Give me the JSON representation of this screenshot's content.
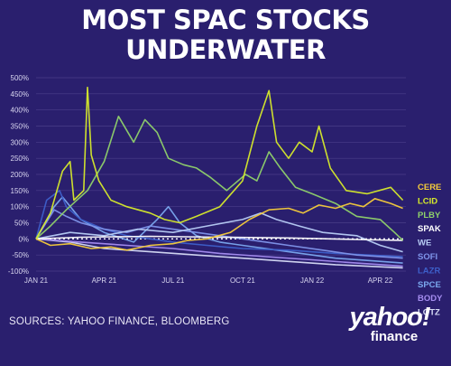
{
  "header": {
    "title_line1": "MOST SPAC STOCKS",
    "title_line2": "UNDERWATER"
  },
  "footer": {
    "sources": "SOURCES: YAHOO FINANCE, BLOOMBERG",
    "logo_line1": "yahoo!",
    "logo_line2": "finance"
  },
  "colors": {
    "background": "#2a1f6e",
    "grid": "#4a3f8a",
    "zero_line": "#ffffff"
  },
  "chart_data": {
    "type": "line",
    "title": "MOST SPAC STOCKS UNDERWATER",
    "ylim": [
      -100,
      500
    ],
    "y_ticks": [
      500,
      450,
      400,
      350,
      300,
      250,
      200,
      150,
      100,
      50,
      0,
      -50,
      -100
    ],
    "y_tick_labels": [
      "500%",
      "450%",
      "400%",
      "350%",
      "300%",
      "250%",
      "200%",
      "150%",
      "100%",
      "50%",
      "0%",
      "-50%",
      "-100%"
    ],
    "x_range": [
      "2021-01-01",
      "2022-05-05"
    ],
    "x_ticks": [
      "2021-01-01",
      "2021-04-01",
      "2021-07-01",
      "2021-10-01",
      "2022-01-01",
      "2022-04-01"
    ],
    "x_tick_labels": [
      "JAN 21",
      "APR 21",
      "JUL 21",
      "OCT 21",
      "JAN 22",
      "APR 22"
    ],
    "grid": "horizontal",
    "legend": "right",
    "series": [
      {
        "name": "CERE",
        "color": "#f5cc3a",
        "points": [
          [
            "2021-01-01",
            0
          ],
          [
            "2021-01-20",
            -20
          ],
          [
            "2021-02-15",
            -15
          ],
          [
            "2021-03-15",
            -30
          ],
          [
            "2021-04-10",
            -25
          ],
          [
            "2021-05-01",
            -35
          ],
          [
            "2021-06-01",
            -20
          ],
          [
            "2021-07-01",
            -15
          ],
          [
            "2021-07-20",
            -5
          ],
          [
            "2021-08-15",
            0
          ],
          [
            "2021-09-15",
            20
          ],
          [
            "2021-10-10",
            60
          ],
          [
            "2021-11-05",
            90
          ],
          [
            "2021-12-01",
            95
          ],
          [
            "2021-12-20",
            80
          ],
          [
            "2022-01-10",
            105
          ],
          [
            "2022-02-01",
            95
          ],
          [
            "2022-02-20",
            110
          ],
          [
            "2022-03-10",
            100
          ],
          [
            "2022-03-25",
            125
          ],
          [
            "2022-04-15",
            110
          ],
          [
            "2022-05-01",
            95
          ]
        ]
      },
      {
        "name": "LCID",
        "color": "#d6ea2a",
        "points": [
          [
            "2021-01-01",
            0
          ],
          [
            "2021-01-20",
            80
          ],
          [
            "2021-02-05",
            210
          ],
          [
            "2021-02-15",
            240
          ],
          [
            "2021-02-20",
            120
          ],
          [
            "2021-03-05",
            150
          ],
          [
            "2021-03-10",
            470
          ],
          [
            "2021-03-15",
            260
          ],
          [
            "2021-03-25",
            180
          ],
          [
            "2021-04-10",
            120
          ],
          [
            "2021-05-01",
            100
          ],
          [
            "2021-06-01",
            80
          ],
          [
            "2021-06-20",
            60
          ],
          [
            "2021-07-10",
            50
          ],
          [
            "2021-08-01",
            70
          ],
          [
            "2021-09-01",
            100
          ],
          [
            "2021-10-01",
            180
          ],
          [
            "2021-10-20",
            350
          ],
          [
            "2021-11-05",
            460
          ],
          [
            "2021-11-15",
            300
          ],
          [
            "2021-12-01",
            250
          ],
          [
            "2021-12-15",
            300
          ],
          [
            "2022-01-01",
            270
          ],
          [
            "2022-01-10",
            350
          ],
          [
            "2022-01-25",
            220
          ],
          [
            "2022-02-15",
            150
          ],
          [
            "2022-03-15",
            140
          ],
          [
            "2022-04-15",
            160
          ],
          [
            "2022-05-01",
            120
          ]
        ]
      },
      {
        "name": "PLBY",
        "color": "#8fd16a",
        "points": [
          [
            "2021-01-01",
            0
          ],
          [
            "2021-01-20",
            40
          ],
          [
            "2021-02-10",
            90
          ],
          [
            "2021-03-10",
            150
          ],
          [
            "2021-04-01",
            240
          ],
          [
            "2021-04-20",
            380
          ],
          [
            "2021-05-10",
            300
          ],
          [
            "2021-05-25",
            370
          ],
          [
            "2021-06-10",
            330
          ],
          [
            "2021-06-25",
            250
          ],
          [
            "2021-07-15",
            230
          ],
          [
            "2021-08-01",
            220
          ],
          [
            "2021-08-20",
            190
          ],
          [
            "2021-09-10",
            150
          ],
          [
            "2021-10-05",
            200
          ],
          [
            "2021-10-20",
            180
          ],
          [
            "2021-11-05",
            270
          ],
          [
            "2021-11-20",
            220
          ],
          [
            "2021-12-10",
            160
          ],
          [
            "2022-01-01",
            140
          ],
          [
            "2022-02-01",
            110
          ],
          [
            "2022-03-01",
            70
          ],
          [
            "2022-04-01",
            60
          ],
          [
            "2022-04-20",
            20
          ],
          [
            "2022-05-01",
            -5
          ]
        ]
      },
      {
        "name": "SPAK",
        "color": "#ffffff",
        "points": [
          [
            "2021-01-01",
            0
          ],
          [
            "2021-03-01",
            5
          ],
          [
            "2021-06-01",
            8
          ],
          [
            "2021-09-01",
            5
          ],
          [
            "2021-12-01",
            3
          ],
          [
            "2022-03-01",
            -2
          ],
          [
            "2022-05-01",
            -5
          ]
        ]
      },
      {
        "name": "WE",
        "color": "#b8cdf5",
        "points": [
          [
            "2021-01-01",
            0
          ],
          [
            "2021-02-15",
            20
          ],
          [
            "2021-04-01",
            10
          ],
          [
            "2021-05-15",
            30
          ],
          [
            "2021-07-01",
            20
          ],
          [
            "2021-08-15",
            40
          ],
          [
            "2021-10-01",
            60
          ],
          [
            "2021-10-25",
            80
          ],
          [
            "2021-11-15",
            60
          ],
          [
            "2021-12-15",
            40
          ],
          [
            "2022-01-15",
            20
          ],
          [
            "2022-03-01",
            10
          ],
          [
            "2022-04-01",
            -20
          ],
          [
            "2022-05-01",
            -40
          ]
        ]
      },
      {
        "name": "SOFI",
        "color": "#7f95ea",
        "points": [
          [
            "2021-01-01",
            0
          ],
          [
            "2021-01-25",
            90
          ],
          [
            "2021-02-10",
            70
          ],
          [
            "2021-03-01",
            50
          ],
          [
            "2021-04-01",
            30
          ],
          [
            "2021-05-01",
            20
          ],
          [
            "2021-06-01",
            40
          ],
          [
            "2021-07-01",
            30
          ],
          [
            "2021-08-01",
            20
          ],
          [
            "2021-09-01",
            10
          ],
          [
            "2021-10-01",
            0
          ],
          [
            "2021-11-01",
            -10
          ],
          [
            "2021-12-01",
            -20
          ],
          [
            "2022-01-15",
            -35
          ],
          [
            "2022-03-01",
            -50
          ],
          [
            "2022-05-01",
            -60
          ]
        ]
      },
      {
        "name": "LAZR",
        "color": "#3d5fc9",
        "points": [
          [
            "2021-01-01",
            0
          ],
          [
            "2021-01-15",
            120
          ],
          [
            "2021-02-01",
            150
          ],
          [
            "2021-02-10",
            100
          ],
          [
            "2021-03-01",
            60
          ],
          [
            "2021-04-01",
            30
          ],
          [
            "2021-05-01",
            10
          ],
          [
            "2021-06-01",
            0
          ],
          [
            "2021-07-01",
            -10
          ],
          [
            "2021-08-15",
            -20
          ],
          [
            "2021-10-01",
            -30
          ],
          [
            "2021-12-01",
            -35
          ],
          [
            "2022-02-01",
            -45
          ],
          [
            "2022-05-01",
            -55
          ]
        ]
      },
      {
        "name": "SPCE",
        "color": "#7aa8ee",
        "points": [
          [
            "2021-01-01",
            0
          ],
          [
            "2021-01-25",
            100
          ],
          [
            "2021-02-05",
            130
          ],
          [
            "2021-03-01",
            60
          ],
          [
            "2021-04-01",
            20
          ],
          [
            "2021-05-10",
            -10
          ],
          [
            "2021-06-10",
            60
          ],
          [
            "2021-06-25",
            100
          ],
          [
            "2021-07-10",
            50
          ],
          [
            "2021-08-01",
            10
          ],
          [
            "2021-09-01",
            -10
          ],
          [
            "2021-10-01",
            -20
          ],
          [
            "2021-12-01",
            -40
          ],
          [
            "2022-02-01",
            -60
          ],
          [
            "2022-05-01",
            -75
          ]
        ]
      },
      {
        "name": "BODY",
        "color": "#a58df0",
        "points": [
          [
            "2021-01-01",
            0
          ],
          [
            "2021-03-01",
            -10
          ],
          [
            "2021-05-01",
            -20
          ],
          [
            "2021-07-01",
            -30
          ],
          [
            "2021-09-01",
            -45
          ],
          [
            "2021-11-01",
            -55
          ],
          [
            "2022-01-01",
            -65
          ],
          [
            "2022-03-01",
            -75
          ],
          [
            "2022-05-01",
            -85
          ]
        ]
      },
      {
        "name": "LOTZ",
        "color": "#d7dcf6",
        "points": [
          [
            "2021-01-01",
            0
          ],
          [
            "2021-02-15",
            -10
          ],
          [
            "2021-04-01",
            -30
          ],
          [
            "2021-06-01",
            -40
          ],
          [
            "2021-08-01",
            -50
          ],
          [
            "2021-10-01",
            -60
          ],
          [
            "2021-12-01",
            -70
          ],
          [
            "2022-02-01",
            -80
          ],
          [
            "2022-05-01",
            -90
          ]
        ]
      }
    ]
  }
}
